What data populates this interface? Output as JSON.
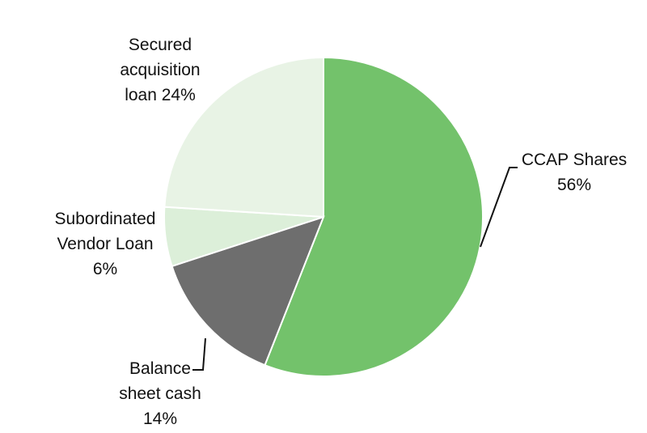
{
  "chart_data": {
    "type": "pie",
    "categories": [
      "CCAP Shares",
      "Balance sheet cash",
      "Subordinated Vendor Loan",
      "Secured acquisition loan"
    ],
    "values": [
      56,
      14,
      6,
      24
    ],
    "value_labels": [
      "56%",
      "14%",
      "6%",
      "24%"
    ],
    "colors": [
      "#73c26b",
      "#6e6e6e",
      "#dcefd9",
      "#e8f3e5"
    ]
  }
}
